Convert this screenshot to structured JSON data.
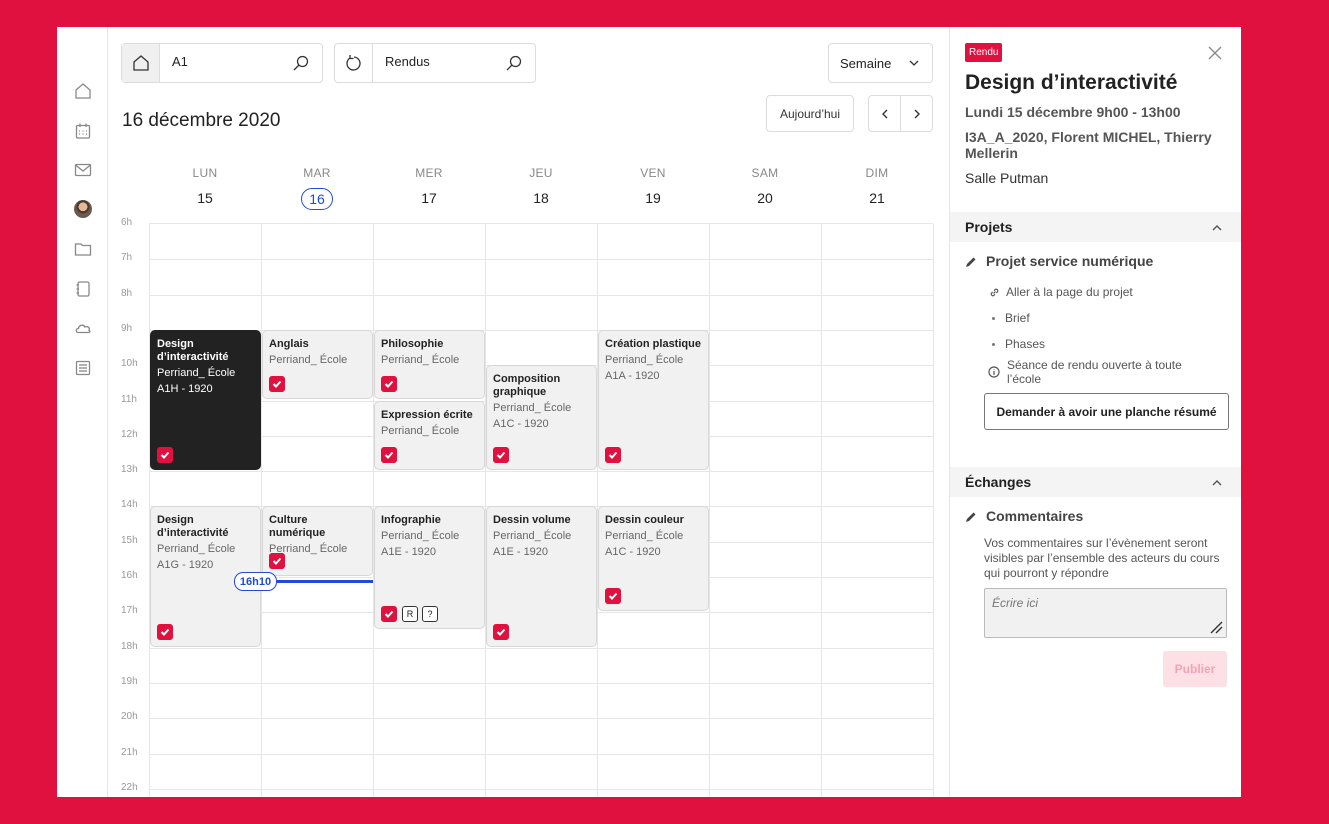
{
  "colors": {
    "brand": "#e0103f",
    "now": "#1f4bd8",
    "dark_event": "#222222"
  },
  "sidebar": {
    "items": [
      {
        "name": "home-icon",
        "icon": "home"
      },
      {
        "name": "calendar-icon",
        "icon": "calendar"
      },
      {
        "name": "mail-icon",
        "icon": "mail"
      },
      {
        "name": "avatar",
        "icon": "avatar"
      },
      {
        "name": "folder-icon",
        "icon": "folder"
      },
      {
        "name": "notebook-icon",
        "icon": "notebook"
      },
      {
        "name": "cloud-icon",
        "icon": "cloud"
      },
      {
        "name": "list-icon",
        "icon": "list"
      }
    ]
  },
  "toolbar": {
    "search1_value": "A1",
    "search2_value": "Rendus",
    "view_select": "Semaine",
    "today_label": "Aujourd’hui"
  },
  "calendar": {
    "date_title": "16 décembre  2020",
    "days": [
      {
        "name": "LUN",
        "num": "15"
      },
      {
        "name": "MAR",
        "num": "16",
        "today": true
      },
      {
        "name": "MER",
        "num": "17"
      },
      {
        "name": "JEU",
        "num": "18"
      },
      {
        "name": "VEN",
        "num": "19"
      },
      {
        "name": "SAM",
        "num": "20"
      },
      {
        "name": "DIM",
        "num": "21"
      }
    ],
    "hours": [
      "6h",
      "7h",
      "8h",
      "9h",
      "10h",
      "11h",
      "12h",
      "13h",
      "14h",
      "15h",
      "16h",
      "17h",
      "18h",
      "19h",
      "20h",
      "21h",
      "22h"
    ],
    "now_label": "16h10",
    "events": [
      {
        "day": 0,
        "start": 9,
        "end": 13,
        "title": "Design d’interactivité",
        "lines": [
          "Perriand_ École",
          "A1H - 1920"
        ],
        "dark": true,
        "check": true
      },
      {
        "day": 1,
        "start": 9,
        "end": 11,
        "title": "Anglais",
        "lines": [
          "Perriand_ École"
        ],
        "check": true
      },
      {
        "day": 2,
        "start": 9,
        "end": 11,
        "title": "Philosophie",
        "lines": [
          "Perriand_ École"
        ],
        "check": true
      },
      {
        "day": 2,
        "start": 11,
        "end": 13,
        "title": "Expression écrite",
        "lines": [
          "Perriand_ École"
        ],
        "check": true
      },
      {
        "day": 3,
        "start": 10,
        "end": 13,
        "title": "Composition graphique",
        "lines": [
          "Perriand_ École",
          "A1C - 1920"
        ],
        "check": true
      },
      {
        "day": 4,
        "start": 9,
        "end": 13,
        "title": "Création plastique",
        "lines": [
          "Perriand_ École",
          "A1A - 1920"
        ],
        "check": true
      },
      {
        "day": 0,
        "start": 14,
        "end": 18,
        "title": "Design d’interactivité",
        "lines": [
          "Perriand_ École",
          "A1G - 1920"
        ],
        "check": true
      },
      {
        "day": 1,
        "start": 14,
        "end": 16,
        "title": "Culture numérique",
        "lines": [
          "Perriand_ École"
        ],
        "check": true
      },
      {
        "day": 2,
        "start": 14,
        "end": 17.5,
        "title": "Infographie",
        "lines": [
          "Perriand_ École",
          "A1E - 1920"
        ],
        "check": true,
        "tags": [
          "R",
          "?"
        ]
      },
      {
        "day": 3,
        "start": 14,
        "end": 18,
        "title": "Dessin volume",
        "lines": [
          "Perriand_ École",
          "A1E - 1920"
        ],
        "check": true
      },
      {
        "day": 4,
        "start": 14,
        "end": 17,
        "title": "Dessin couleur",
        "lines": [
          "Perriand_ École",
          "A1C - 1920"
        ],
        "check": true
      }
    ]
  },
  "panel": {
    "badge": "Rendu",
    "title": "Design d’interactivité",
    "datetime": "Lundi 15 décembre 9h00 - 13h00",
    "participants": "I3A_A_2020, Florent MICHEL, Thierry Mellerin",
    "room": "Salle Putman",
    "projects_heading": "Projets",
    "project_title": "Projet service numérique",
    "project_link": "Aller à la page du projet",
    "brief": "Brief",
    "phases": "Phases",
    "info": "Séance de rendu ouverte à toute l’école",
    "demand_button": "Demander à avoir une planche résumé",
    "exchanges_heading": "Échanges",
    "comments_title": "Commentaires",
    "comments_desc": "Vos commentaires sur l’évènement seront visibles par l’ensemble des acteurs du cours qui pourront y répondre",
    "comment_placeholder": "Écrire ici",
    "publish_button": "Publier"
  }
}
